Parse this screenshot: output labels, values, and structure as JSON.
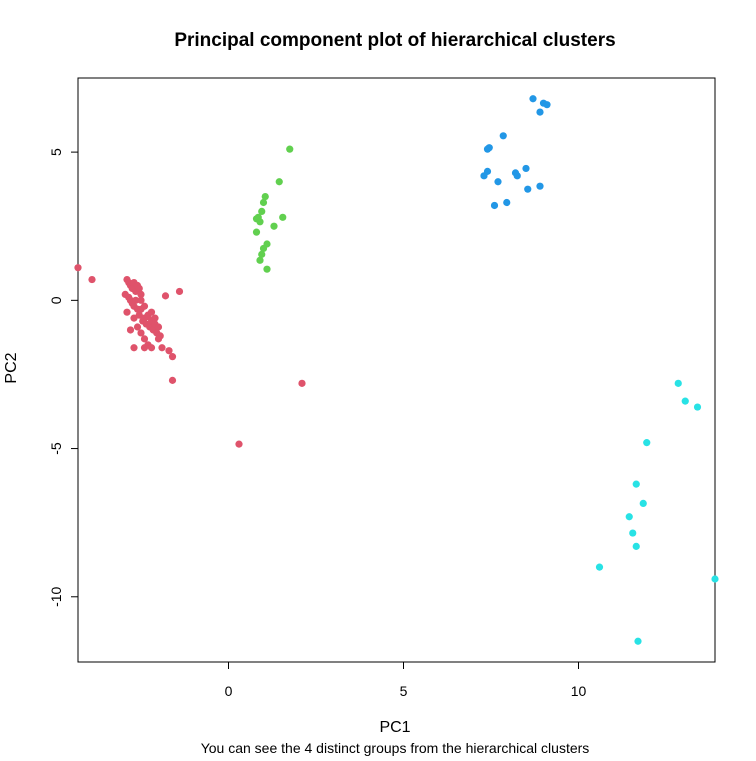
{
  "chart_data": {
    "type": "scatter",
    "title": "Principal component plot of hierarchical clusters",
    "subtitle": "You can see the 4 distinct groups from the hierarchical clusters",
    "xlabel": "PC1",
    "ylabel": "PC2",
    "xlim": [
      -4.3,
      13.9
    ],
    "ylim": [
      -12.2,
      7.5
    ],
    "xticks": [
      0,
      5,
      10
    ],
    "yticks": [
      -10,
      -5,
      0,
      5
    ],
    "grid": false,
    "legend": "none",
    "series": [
      {
        "color": "#DF536B",
        "points": [
          [
            -4.3,
            1.1
          ],
          [
            -3.9,
            0.7
          ],
          [
            -2.9,
            0.7
          ],
          [
            -2.85,
            0.6
          ],
          [
            -2.8,
            0.5
          ],
          [
            -2.75,
            0.4
          ],
          [
            -2.7,
            0.6
          ],
          [
            -2.65,
            0.3
          ],
          [
            -2.6,
            0.5
          ],
          [
            -2.55,
            0.4
          ],
          [
            -2.5,
            0.2
          ],
          [
            -2.85,
            0.1
          ],
          [
            -2.8,
            0.0
          ],
          [
            -2.75,
            -0.1
          ],
          [
            -2.7,
            -0.2
          ],
          [
            -2.65,
            0.0
          ],
          [
            -2.6,
            -0.3
          ],
          [
            -2.55,
            -0.5
          ],
          [
            -2.5,
            -0.3
          ],
          [
            -2.45,
            -0.7
          ],
          [
            -2.4,
            -0.6
          ],
          [
            -2.35,
            -0.8
          ],
          [
            -2.3,
            -0.5
          ],
          [
            -2.25,
            -0.9
          ],
          [
            -2.2,
            -0.7
          ],
          [
            -2.15,
            -1.0
          ],
          [
            -2.1,
            -0.8
          ],
          [
            -2.05,
            -1.1
          ],
          [
            -2.0,
            -0.9
          ],
          [
            -1.95,
            -1.2
          ],
          [
            -2.7,
            -0.6
          ],
          [
            -2.6,
            -0.9
          ],
          [
            -2.5,
            -1.1
          ],
          [
            -2.4,
            -1.3
          ],
          [
            -2.3,
            -1.5
          ],
          [
            -2.2,
            -1.6
          ],
          [
            -2.0,
            -1.3
          ],
          [
            -2.8,
            -1.0
          ],
          [
            -2.7,
            -1.6
          ],
          [
            -2.4,
            -1.6
          ],
          [
            -1.9,
            -1.6
          ],
          [
            -1.7,
            -1.7
          ],
          [
            -1.6,
            -1.9
          ],
          [
            -1.8,
            0.15
          ],
          [
            -1.4,
            0.3
          ],
          [
            -1.6,
            -2.7
          ],
          [
            2.1,
            -2.8
          ],
          [
            0.3,
            -4.85
          ],
          [
            -2.3,
            -0.55
          ],
          [
            -2.2,
            -0.4
          ],
          [
            -2.1,
            -0.6
          ],
          [
            -2.95,
            0.2
          ],
          [
            -2.9,
            -0.4
          ],
          [
            -2.5,
            0.0
          ],
          [
            -2.4,
            -0.2
          ]
        ]
      },
      {
        "color": "#61D04F",
        "points": [
          [
            1.75,
            5.1
          ],
          [
            1.45,
            4.0
          ],
          [
            1.05,
            3.5
          ],
          [
            1.0,
            3.3
          ],
          [
            0.95,
            3.0
          ],
          [
            0.85,
            2.8
          ],
          [
            0.8,
            2.75
          ],
          [
            0.9,
            2.65
          ],
          [
            1.55,
            2.8
          ],
          [
            1.3,
            2.5
          ],
          [
            0.8,
            2.3
          ],
          [
            1.1,
            1.9
          ],
          [
            1.0,
            1.75
          ],
          [
            0.95,
            1.55
          ],
          [
            0.9,
            1.35
          ],
          [
            1.1,
            1.05
          ]
        ]
      },
      {
        "color": "#2297E6",
        "points": [
          [
            8.7,
            6.8
          ],
          [
            9.0,
            6.65
          ],
          [
            9.1,
            6.6
          ],
          [
            8.9,
            6.35
          ],
          [
            7.85,
            5.55
          ],
          [
            7.45,
            5.15
          ],
          [
            7.4,
            5.1
          ],
          [
            8.2,
            4.3
          ],
          [
            8.25,
            4.2
          ],
          [
            7.4,
            4.35
          ],
          [
            7.3,
            4.2
          ],
          [
            8.5,
            4.45
          ],
          [
            7.7,
            4.0
          ],
          [
            8.9,
            3.85
          ],
          [
            8.55,
            3.75
          ],
          [
            7.95,
            3.3
          ],
          [
            7.6,
            3.2
          ]
        ]
      },
      {
        "color": "#28E2E5",
        "points": [
          [
            12.85,
            -2.8
          ],
          [
            13.05,
            -3.4
          ],
          [
            13.4,
            -3.6
          ],
          [
            11.95,
            -4.8
          ],
          [
            11.65,
            -6.2
          ],
          [
            11.85,
            -6.85
          ],
          [
            11.45,
            -7.3
          ],
          [
            11.55,
            -7.85
          ],
          [
            11.65,
            -8.3
          ],
          [
            10.6,
            -9.0
          ],
          [
            13.9,
            -9.4
          ],
          [
            11.7,
            -11.5
          ]
        ]
      }
    ]
  }
}
